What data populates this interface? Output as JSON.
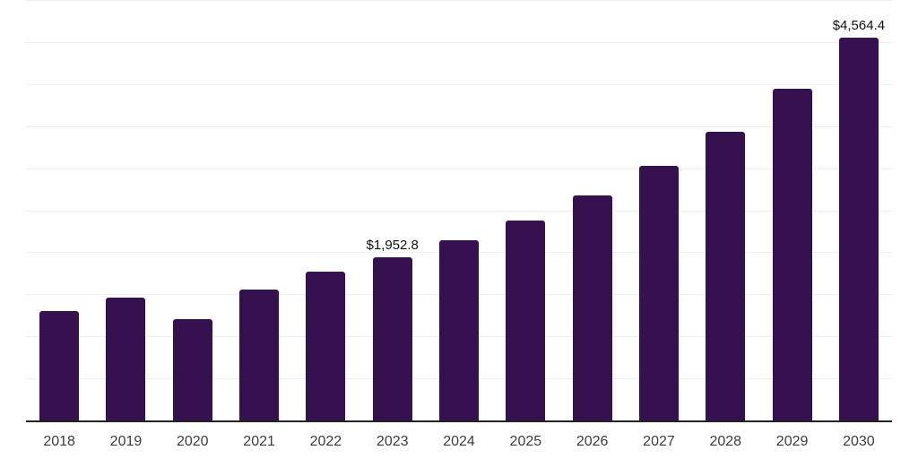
{
  "chart_data": {
    "type": "bar",
    "title": "",
    "xlabel": "",
    "ylabel": "",
    "categories": [
      "2018",
      "2019",
      "2020",
      "2021",
      "2022",
      "2023",
      "2024",
      "2025",
      "2026",
      "2027",
      "2028",
      "2029",
      "2030"
    ],
    "values": [
      1310,
      1475,
      1220,
      1567,
      1780,
      1952.8,
      2150,
      2390,
      2690,
      3040,
      3445,
      3955,
      4564.4
    ],
    "data_labels": [
      "",
      "",
      "",
      "",
      "",
      "$1,952.8",
      "",
      "",
      "",
      "",
      "",
      "",
      "$4,564.4"
    ],
    "ylim": [
      0,
      5000
    ],
    "gridline_step": 500,
    "grid": true,
    "legend": false,
    "colors": {
      "bar": "#36114f",
      "gridline": "#efefef",
      "axis_line": "#222222",
      "tick_label": "#3c3c3c",
      "data_label": "#111111",
      "background": "#ffffff"
    }
  }
}
